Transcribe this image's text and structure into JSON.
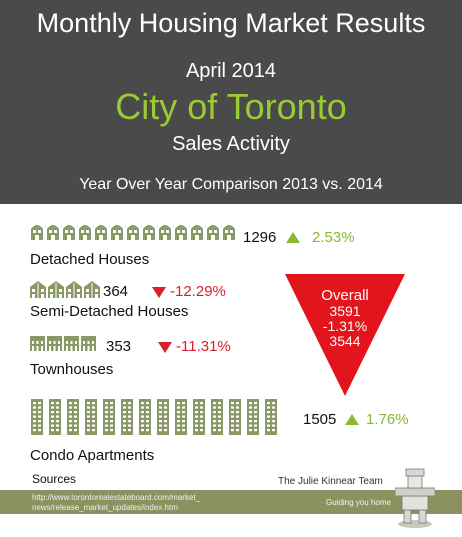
{
  "header": {
    "title": "Monthly Housing Market Results",
    "date": "April 2014",
    "city": "City of Toronto",
    "subtitle": "Sales Activity",
    "comparison": "Year Over Year Comparison 2013 vs. 2014"
  },
  "categories": {
    "detached": {
      "label": "Detached Houses",
      "value": "1296",
      "change": "2.53%",
      "direction": "up",
      "icon_count": 13
    },
    "semi": {
      "label": "Semi-Detached Houses",
      "value": "364",
      "change": "-12.29%",
      "direction": "down",
      "icon_count": 4
    },
    "town": {
      "label": "Townhouses",
      "value": "353",
      "change": "-11.31%",
      "direction": "down",
      "icon_count": 4
    },
    "condo": {
      "label": "Condo Apartments",
      "value": "1505",
      "change": "1.76%",
      "direction": "up",
      "icon_count": 14
    }
  },
  "overall": {
    "label": "Overall",
    "value_2013": "3591",
    "change": "-1.31%",
    "value_2014": "3544"
  },
  "footer": {
    "sources_label": "Sources",
    "url_line1": "http://www.torontorealestateboard.com/market_",
    "url_line2": "news/release_market_updates/index.htm",
    "team": "The Julie Kinnear Team",
    "tagline": "Guiding you home"
  },
  "colors": {
    "header_bg": "#4a4a4a",
    "city_green": "#99cc33",
    "icon_green": "#8a9868",
    "up_green": "#8ab833",
    "down_red": "#d6202a",
    "triangle_red": "#e2141c",
    "footer_bar": "#8c9160"
  }
}
